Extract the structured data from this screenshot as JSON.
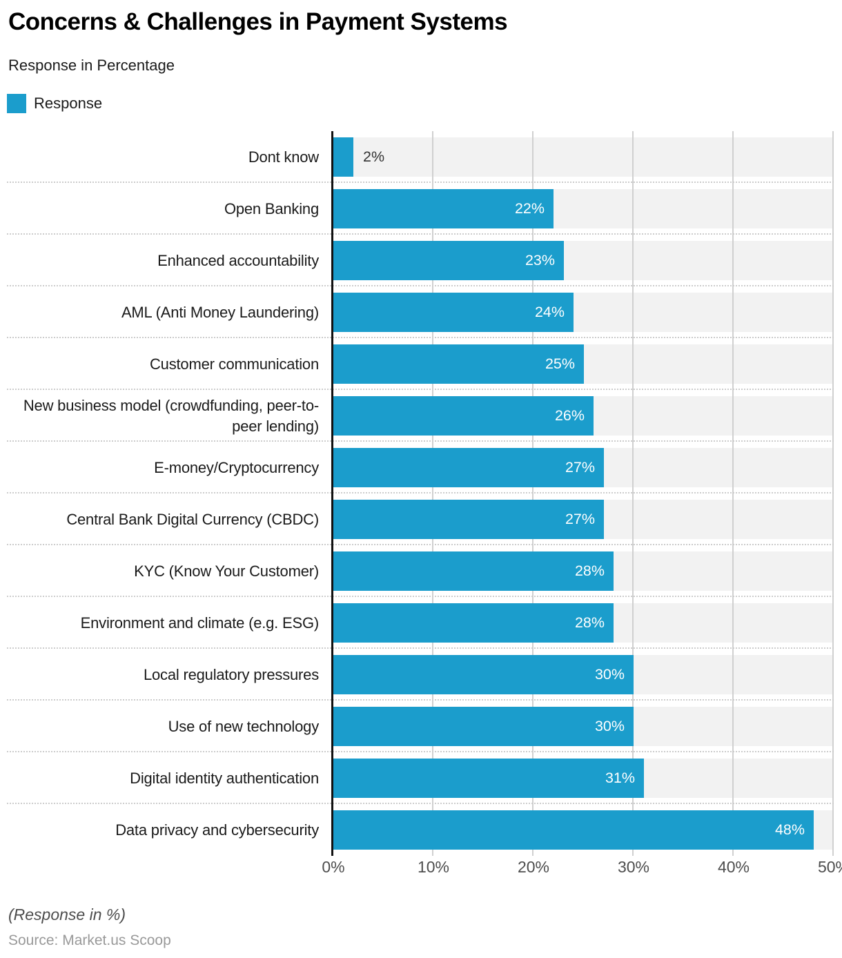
{
  "header": {
    "title": "Concerns & Challenges in Payment Systems",
    "subtitle": "Response in Percentage"
  },
  "legend": {
    "label": "Response",
    "swatch_color": "#1b9dcc"
  },
  "chart_data": {
    "type": "bar",
    "orientation": "horizontal",
    "title": "Concerns & Challenges in Payment Systems",
    "subtitle": "Response in Percentage",
    "series_name": "Response",
    "categories": [
      "Dont know",
      "Open Banking",
      "Enhanced accountability",
      "AML (Anti Money Laundering)",
      "Customer communication",
      "New business model (crowdfunding, peer-to-peer lending)",
      "E-money/Cryptocurrency",
      "Central Bank Digital Currency (CBDC)",
      "KYC (Know Your Customer)",
      "Environment and climate (e.g. ESG)",
      "Local regulatory pressures",
      "Use of new technology",
      "Digital identity authentication",
      "Data privacy and cybersecurity"
    ],
    "values": [
      2,
      22,
      23,
      24,
      25,
      26,
      27,
      27,
      28,
      28,
      30,
      30,
      31,
      48
    ],
    "value_suffix": "%",
    "xlim": [
      0,
      50
    ],
    "xticks": [
      "0%",
      "10%",
      "20%",
      "30%",
      "40%",
      "50%"
    ],
    "grid": "vertical",
    "legend_position": "top-left",
    "colors": {
      "bar": "#1b9dcc",
      "track_stripe": "#f2f2f2",
      "gridline": "#d0d0d0",
      "axis": "#111111",
      "value_inside": "#ffffff",
      "value_outside": "#333333"
    }
  },
  "footer": {
    "note": "(Response in %)",
    "source": "Source: Market.us Scoop"
  }
}
